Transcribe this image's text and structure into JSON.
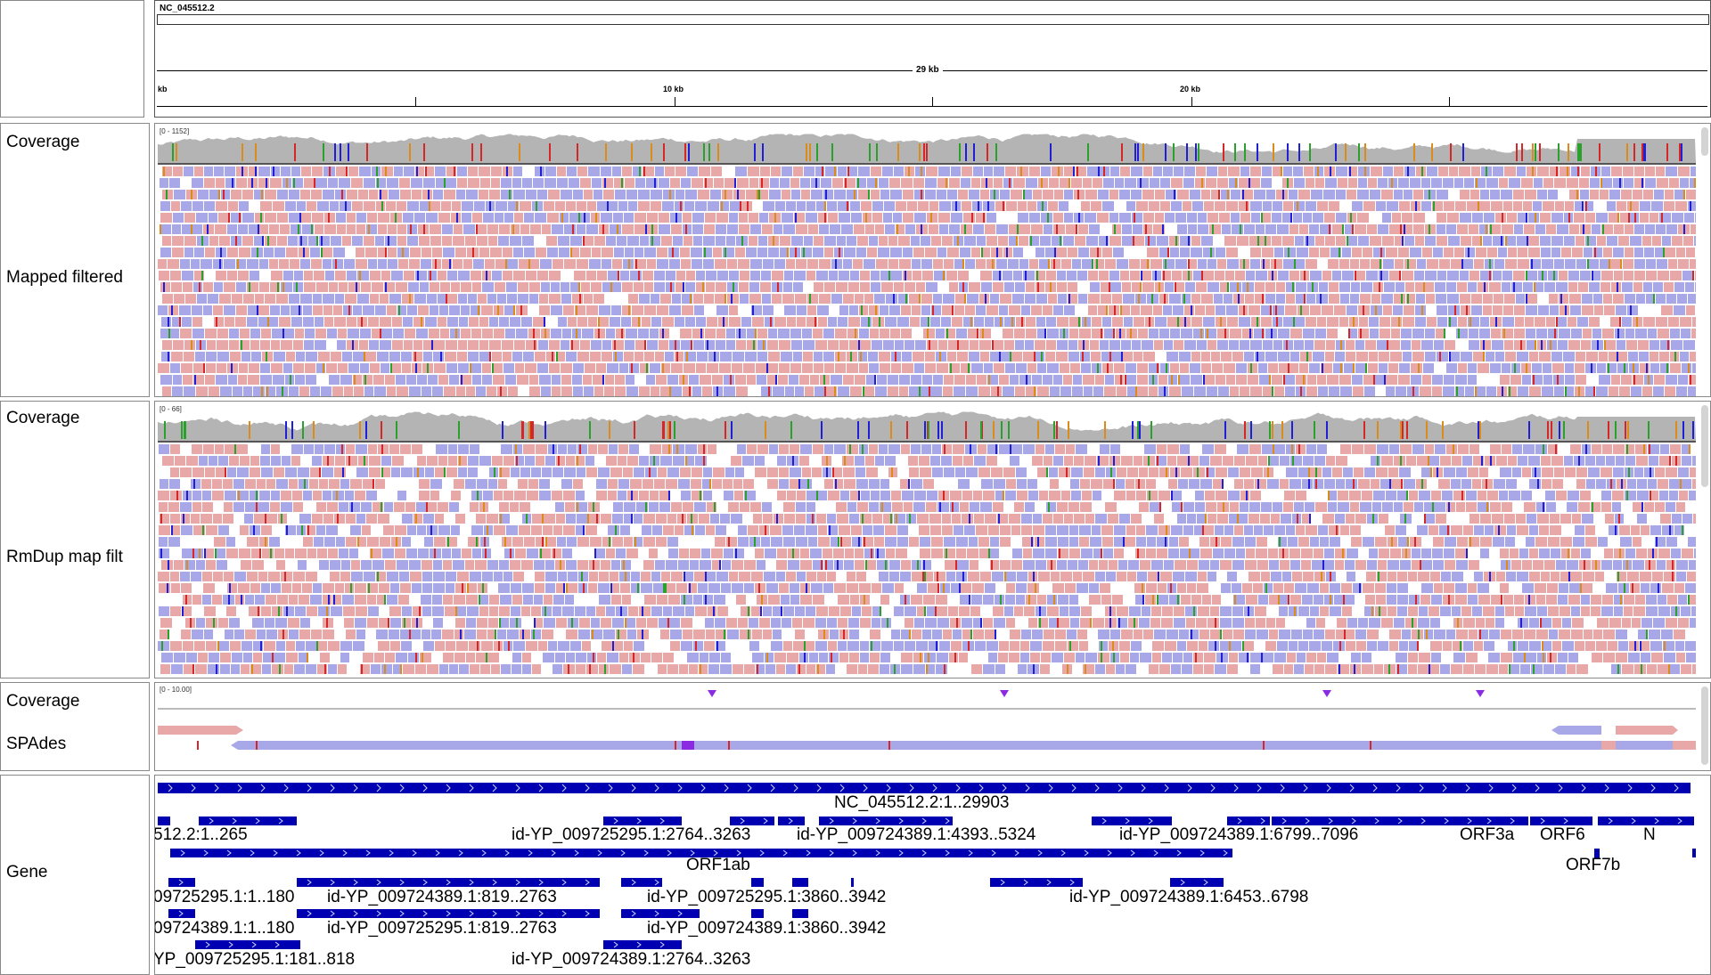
{
  "ruler": {
    "chromosome": "NC_045512.2",
    "span_label": "29 kb",
    "tick_labels": [
      "kb",
      "10 kb",
      "20 kb"
    ]
  },
  "tracks": {
    "mapped_filtered": {
      "coverage_name": "Coverage",
      "coverage_range": "[0 - 1152]",
      "reads_name": "Mapped filtered"
    },
    "rmdup": {
      "coverage_name": "Coverage",
      "coverage_range": "[0 - 66]",
      "reads_name": "RmDup map filt"
    },
    "spades": {
      "coverage_name": "Coverage",
      "coverage_range": "[0 - 10.00]",
      "reads_name": "SPAdes"
    },
    "gene": {
      "name": "Gene"
    }
  },
  "colors": {
    "forward_read": "#e8a8a8",
    "reverse_read": "#a8a8e8",
    "coverage": "#b4b4b4",
    "gene_feature": "#0000b2",
    "insertion_marker": "#8a2be2"
  },
  "features": [
    {
      "label": "NC_045512.2:1..29903"
    },
    {
      "label": "512.2:1..265"
    },
    {
      "label": "id-YP_009725295.1:2764..3263"
    },
    {
      "label": "id-YP_009724389.1:4393..5324"
    },
    {
      "label": "id-YP_009724389.1:6799..7096"
    },
    {
      "label": "ORF3a"
    },
    {
      "label": "ORF6"
    },
    {
      "label": "N"
    },
    {
      "label": "ORF1ab"
    },
    {
      "label": "ORF7b"
    },
    {
      "label": "09725295.1:1..180"
    },
    {
      "label": "id-YP_009724389.1:819..2763"
    },
    {
      "label": "id-YP_009725295.1:3860..3942"
    },
    {
      "label": "id-YP_009724389.1:6453..6798"
    },
    {
      "label": "09724389.1:1..180"
    },
    {
      "label": "id-YP_009725295.1:819..2763"
    },
    {
      "label": "id-YP_009724389.1:3860..3942"
    },
    {
      "label": "YP_009725295.1:181..818"
    },
    {
      "label": "id-YP_009724389.1:2764..3263"
    }
  ]
}
